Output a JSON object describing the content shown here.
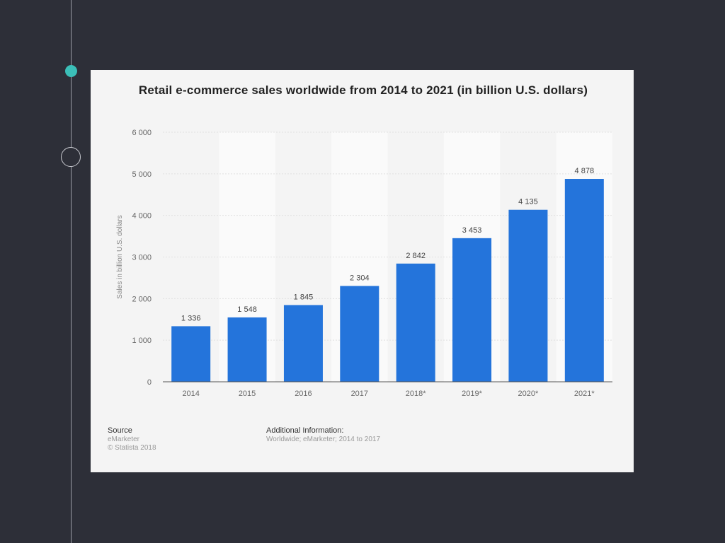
{
  "chart_data": {
    "type": "bar",
    "title": "Retail e-commerce sales worldwide from 2014 to 2021 (in billion U.S. dollars)",
    "xlabel": "",
    "ylabel": "Sales in billion U.S. dollars",
    "categories": [
      "2014",
      "2015",
      "2016",
      "2017",
      "2018*",
      "2019*",
      "2020*",
      "2021*"
    ],
    "values": [
      1336,
      1548,
      1845,
      2304,
      2842,
      3453,
      4135,
      4878
    ],
    "data_labels": [
      "1 336",
      "1 548",
      "1 845",
      "2 304",
      "2 842",
      "3 453",
      "4 135",
      "4 878"
    ],
    "ylim": [
      0,
      6000
    ],
    "yticks": [
      0,
      1000,
      2000,
      3000,
      4000,
      5000,
      6000
    ],
    "ytick_labels": [
      "0",
      "1 000",
      "2 000",
      "3 000",
      "4 000",
      "5 000",
      "6 000"
    ],
    "grid": true,
    "bar_color": "#2474db"
  },
  "source": {
    "label": "Source",
    "lines": [
      "eMarketer",
      "© Statista 2018"
    ]
  },
  "additional_info": {
    "label": "Additional Information:",
    "text": "Worldwide; eMarketer; 2014 to 2017"
  },
  "colors": {
    "background": "#2d2f38",
    "accent_dot": "#3bbfb8"
  }
}
